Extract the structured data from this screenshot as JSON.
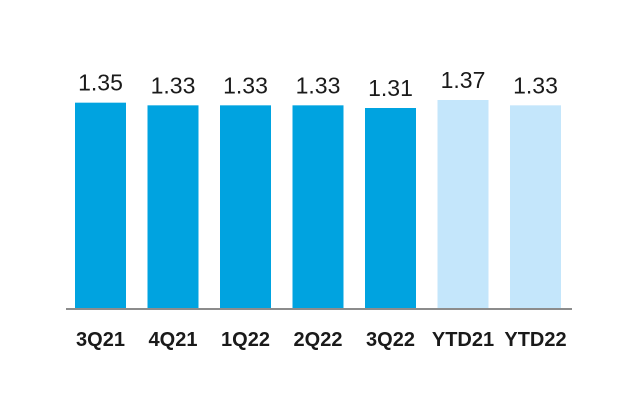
{
  "chart_data": {
    "type": "bar",
    "title": "",
    "xlabel": "",
    "ylabel": "",
    "categories": [
      "3Q21",
      "4Q21",
      "1Q22",
      "2Q22",
      "3Q22",
      "YTD21",
      "YTD22"
    ],
    "values": [
      1.35,
      1.33,
      1.33,
      1.33,
      1.31,
      1.37,
      1.33
    ],
    "value_labels": [
      "1.35",
      "1.33",
      "1.33",
      "1.33",
      "1.31",
      "1.37",
      "1.33"
    ],
    "bar_colors": [
      "#00a3e0",
      "#00a3e0",
      "#00a3e0",
      "#00a3e0",
      "#00a3e0",
      "#c4e6fb",
      "#c4e6fb"
    ],
    "axis_color": "#8c8c8c",
    "ylim": [
      0,
      1.45
    ],
    "grid": false,
    "legend": "none"
  }
}
